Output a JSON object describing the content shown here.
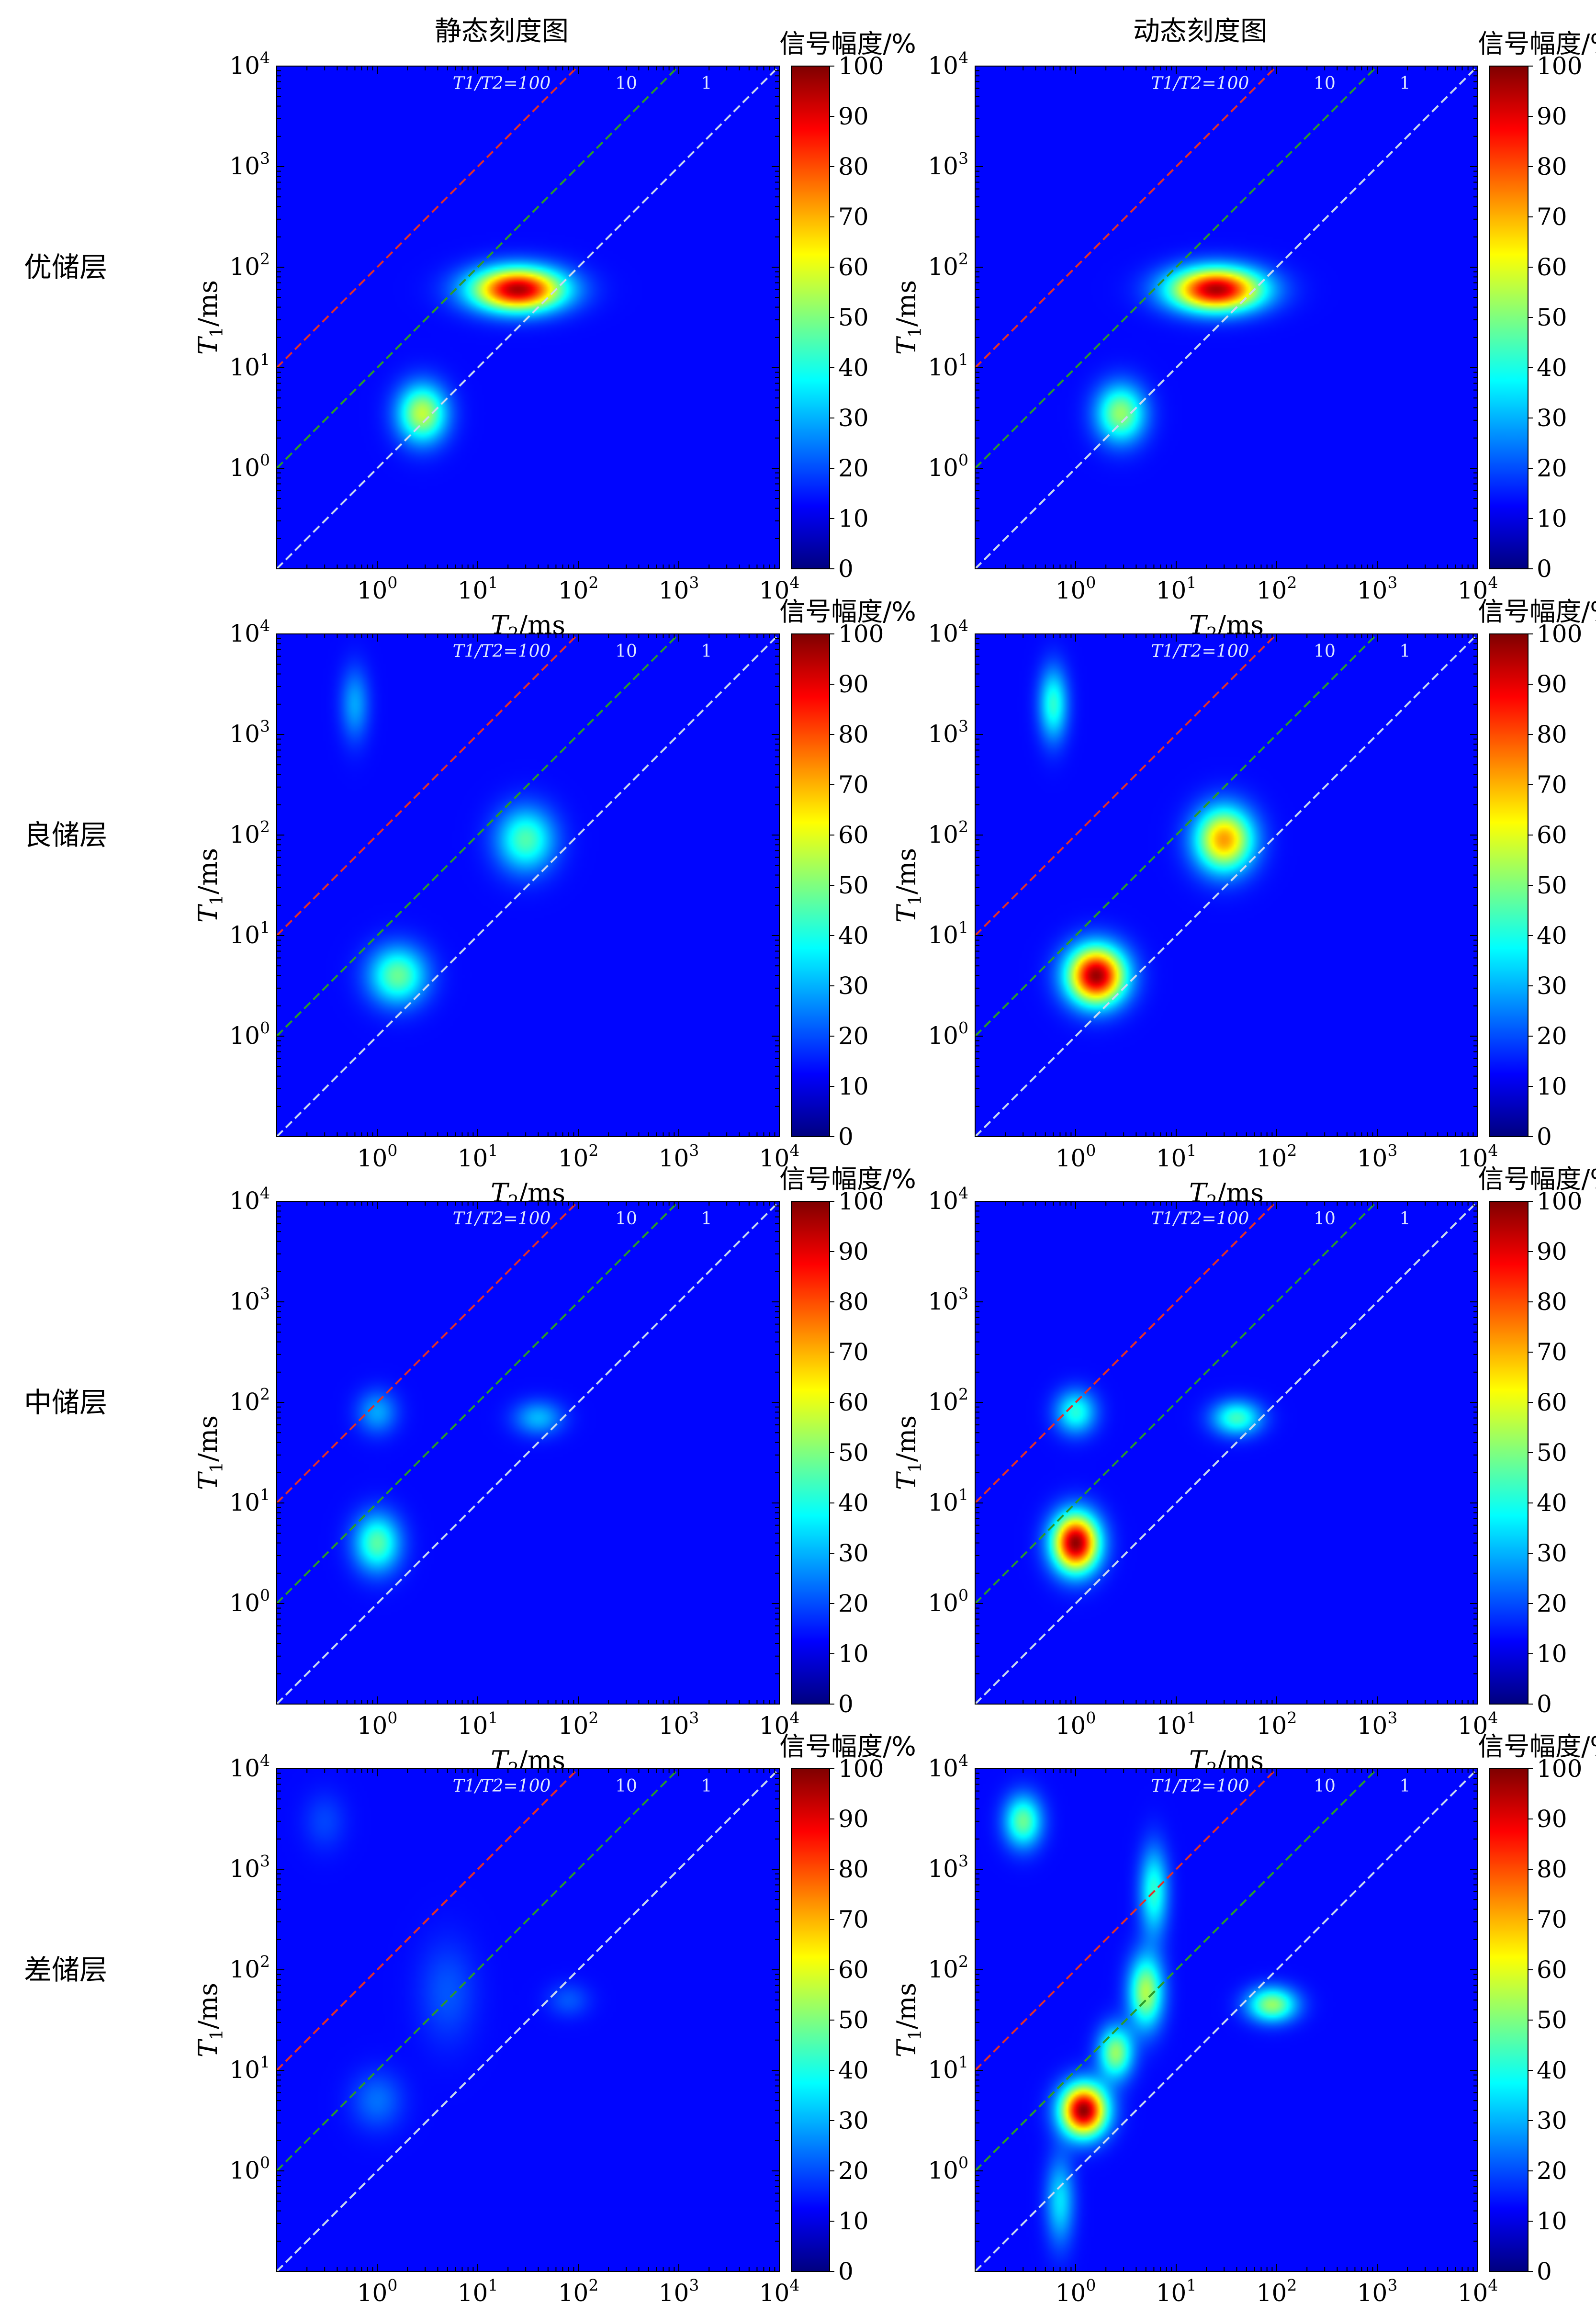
{
  "column_titles": [
    "静态刻度图",
    "动态刻度图"
  ],
  "row_labels": [
    "优储层",
    "良储层",
    "中储层",
    "差储层"
  ],
  "colorbar": {
    "label": "信号幅度/%",
    "ticks": [
      "100",
      "90",
      "80",
      "70",
      "60",
      "50",
      "40",
      "30",
      "20",
      "10",
      "0"
    ],
    "colormap": [
      "#00007f",
      "#0000ff",
      "#007fff",
      "#00ffff",
      "#7fff7f",
      "#ffff00",
      "#ff7f00",
      "#ff0000",
      "#7f0000"
    ]
  },
  "line_labels": {
    "ratio_100": "T1/T2=100",
    "ratio_10": "10",
    "ratio_1": "1"
  },
  "line_colors": {
    "ratio_100": "#e0302a",
    "ratio_10": "#2a9a2a",
    "ratio_1": "#c8d8f0"
  },
  "axis": {
    "xlabel_var": "T",
    "xlabel_sub": "2",
    "xlabel_unit": "/ms",
    "ylabel_var": "T",
    "ylabel_sub": "1",
    "ylabel_unit": "/ms",
    "x_tick_exponents": [
      "0",
      "1",
      "2",
      "3",
      "4"
    ],
    "y_tick_exponents": [
      "0",
      "1",
      "2",
      "3",
      "4"
    ],
    "tick_base": "10"
  },
  "chart_data": [
    {
      "type": "heatmap",
      "row": "优储层",
      "column": "静态刻度图",
      "x_scale": "log",
      "y_scale": "log",
      "xlim": [
        0.1,
        10000
      ],
      "ylim": [
        0.1,
        10000
      ],
      "vmin": 0,
      "vmax": 100,
      "peaks": [
        {
          "t2": 25,
          "t1": 60,
          "amplitude": 95,
          "sx": 0.32,
          "sy": 0.15
        },
        {
          "t2": 2.8,
          "t1": 3.5,
          "amplitude": 50,
          "sx": 0.17,
          "sy": 0.2
        }
      ]
    },
    {
      "type": "heatmap",
      "row": "优储层",
      "column": "动态刻度图",
      "x_scale": "log",
      "y_scale": "log",
      "xlim": [
        0.1,
        10000
      ],
      "ylim": [
        0.1,
        10000
      ],
      "vmin": 0,
      "vmax": 100,
      "peaks": [
        {
          "t2": 25,
          "t1": 60,
          "amplitude": 95,
          "sx": 0.32,
          "sy": 0.15
        },
        {
          "t2": 2.8,
          "t1": 3.5,
          "amplitude": 45,
          "sx": 0.17,
          "sy": 0.2
        }
      ]
    },
    {
      "type": "heatmap",
      "row": "良储层",
      "column": "静态刻度图",
      "x_scale": "log",
      "y_scale": "log",
      "xlim": [
        0.1,
        10000
      ],
      "ylim": [
        0.1,
        10000
      ],
      "vmin": 0,
      "vmax": 100,
      "peaks": [
        {
          "t2": 1.6,
          "t1": 4,
          "amplitude": 40,
          "sx": 0.2,
          "sy": 0.2
        },
        {
          "t2": 30,
          "t1": 90,
          "amplitude": 37,
          "sx": 0.2,
          "sy": 0.22
        },
        {
          "t2": 0.6,
          "t1": 2000,
          "amplitude": 18,
          "sx": 0.1,
          "sy": 0.25
        }
      ]
    },
    {
      "type": "heatmap",
      "row": "良储层",
      "column": "动态刻度图",
      "x_scale": "log",
      "y_scale": "log",
      "xlim": [
        0.1,
        10000
      ],
      "ylim": [
        0.1,
        10000
      ],
      "vmin": 0,
      "vmax": 100,
      "peaks": [
        {
          "t2": 1.6,
          "t1": 4,
          "amplitude": 97,
          "sx": 0.2,
          "sy": 0.2
        },
        {
          "t2": 30,
          "t1": 90,
          "amplitude": 68,
          "sx": 0.2,
          "sy": 0.22
        },
        {
          "t2": 0.6,
          "t1": 2000,
          "amplitude": 33,
          "sx": 0.1,
          "sy": 0.25
        }
      ]
    },
    {
      "type": "heatmap",
      "row": "中储层",
      "column": "静态刻度图",
      "x_scale": "log",
      "y_scale": "log",
      "xlim": [
        0.1,
        10000
      ],
      "ylim": [
        0.1,
        10000
      ],
      "vmin": 0,
      "vmax": 100,
      "peaks": [
        {
          "t2": 1,
          "t1": 4,
          "amplitude": 38,
          "sx": 0.16,
          "sy": 0.2
        },
        {
          "t2": 1,
          "t1": 80,
          "amplitude": 18,
          "sx": 0.14,
          "sy": 0.15
        },
        {
          "t2": 40,
          "t1": 70,
          "amplitude": 20,
          "sx": 0.17,
          "sy": 0.12
        }
      ]
    },
    {
      "type": "heatmap",
      "row": "中储层",
      "column": "动态刻度图",
      "x_scale": "log",
      "y_scale": "log",
      "xlim": [
        0.1,
        10000
      ],
      "ylim": [
        0.1,
        10000
      ],
      "vmin": 0,
      "vmax": 100,
      "peaks": [
        {
          "t2": 1,
          "t1": 4,
          "amplitude": 98,
          "sx": 0.16,
          "sy": 0.2
        },
        {
          "t2": 1,
          "t1": 80,
          "amplitude": 32,
          "sx": 0.14,
          "sy": 0.15
        },
        {
          "t2": 40,
          "t1": 70,
          "amplitude": 35,
          "sx": 0.17,
          "sy": 0.12
        }
      ]
    },
    {
      "type": "heatmap",
      "row": "差储层",
      "column": "静态刻度图",
      "x_scale": "log",
      "y_scale": "log",
      "xlim": [
        0.1,
        10000
      ],
      "ylim": [
        0.1,
        10000
      ],
      "vmin": 0,
      "vmax": 100,
      "peaks": [
        {
          "t2": 1,
          "t1": 5,
          "amplitude": 12,
          "sx": 0.18,
          "sy": 0.2
        },
        {
          "t2": 5,
          "t1": 60,
          "amplitude": 9,
          "sx": 0.2,
          "sy": 0.35
        },
        {
          "t2": 80,
          "t1": 50,
          "amplitude": 9,
          "sx": 0.15,
          "sy": 0.12
        },
        {
          "t2": 0.3,
          "t1": 3000,
          "amplitude": 7,
          "sx": 0.15,
          "sy": 0.2
        }
      ]
    },
    {
      "type": "heatmap",
      "row": "差储层",
      "column": "动态刻度图",
      "x_scale": "log",
      "y_scale": "log",
      "xlim": [
        0.1,
        10000
      ],
      "ylim": [
        0.1,
        10000
      ],
      "vmin": 0,
      "vmax": 100,
      "peaks": [
        {
          "t2": 1.2,
          "t1": 4,
          "amplitude": 98,
          "sx": 0.16,
          "sy": 0.18
        },
        {
          "t2": 2.5,
          "t1": 15,
          "amplitude": 45,
          "sx": 0.12,
          "sy": 0.18
        },
        {
          "t2": 5,
          "t1": 60,
          "amplitude": 48,
          "sx": 0.12,
          "sy": 0.25
        },
        {
          "t2": 6,
          "t1": 600,
          "amplitude": 33,
          "sx": 0.1,
          "sy": 0.3
        },
        {
          "t2": 90,
          "t1": 45,
          "amplitude": 45,
          "sx": 0.17,
          "sy": 0.12
        },
        {
          "t2": 0.3,
          "t1": 3000,
          "amplitude": 40,
          "sx": 0.13,
          "sy": 0.18
        },
        {
          "t2": 0.7,
          "t1": 0.5,
          "amplitude": 25,
          "sx": 0.1,
          "sy": 0.3
        }
      ]
    }
  ]
}
